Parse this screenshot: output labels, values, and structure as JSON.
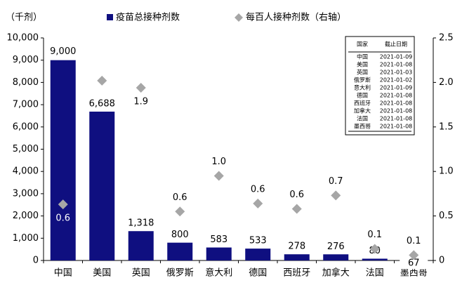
{
  "chart_data": {
    "type": "bar_scatter",
    "unit_label": "（千剂）",
    "categories": [
      "中国",
      "美国",
      "英国",
      "俄罗斯",
      "意大利",
      "德国",
      "西班牙",
      "加拿大",
      "法国",
      "墨西哥"
    ],
    "series": [
      {
        "name": "疫苗总接种剂数",
        "type": "bar",
        "color": "#0f0f80",
        "values": [
          9000,
          6688,
          1318,
          800,
          583,
          533,
          278,
          276,
          80,
          67
        ],
        "value_labels": [
          "9,000",
          "6,688",
          "1,318",
          "800",
          "583",
          "533",
          "278",
          "276",
          "80",
          "67"
        ]
      },
      {
        "name": "每百人接种剂数（右轴）",
        "type": "scatter",
        "axis": "y2",
        "color": "#a6a6a6",
        "values": [
          0.63,
          2.02,
          1.94,
          0.55,
          0.95,
          0.64,
          0.58,
          0.73,
          0.13,
          0.06
        ],
        "value_labels": [
          "0.6",
          null,
          "1.9",
          "0.6",
          "1.0",
          "0.6",
          "0.6",
          "0.7",
          "0.1",
          "0.1"
        ]
      }
    ],
    "ylim": [
      0,
      10000
    ],
    "yticks": [
      0,
      {
        "value": 1000,
        "label": "1,000"
      },
      {
        "value": 2000,
        "label": "2,000"
      },
      {
        "value": 3000,
        "label": "3,000"
      },
      {
        "value": 4000,
        "label": "4,000"
      },
      {
        "value": 5000,
        "label": "5,000"
      },
      {
        "value": 6000,
        "label": "6,000"
      },
      {
        "value": 7000,
        "label": "7,000"
      },
      {
        "value": 8000,
        "label": "8,000"
      },
      {
        "value": 9000,
        "label": "9,000"
      },
      {
        "value": 10000,
        "label": "10,000"
      }
    ],
    "y2lim": [
      0,
      2.5
    ],
    "y2ticks": [
      0,
      0.5,
      {
        "value": 1,
        "label": "1.0"
      },
      1.5,
      {
        "value": 2,
        "label": "2.0"
      },
      2.5
    ],
    "table": {
      "headers": [
        "国家",
        "截止日期"
      ],
      "rows": [
        [
          "中国",
          "2021-01-09"
        ],
        [
          "美国",
          "2021-01-08"
        ],
        [
          "英国",
          "2021-01-03"
        ],
        [
          "俄罗斯",
          "2021-01-02"
        ],
        [
          "意大利",
          "2021-01-09"
        ],
        [
          "德国",
          "2021-01-08"
        ],
        [
          "西班牙",
          "2021-01-08"
        ],
        [
          "加拿大",
          "2021-01-08"
        ],
        [
          "法国",
          "2021-01-08"
        ],
        [
          "墨西哥",
          "2021-01-08"
        ]
      ]
    }
  }
}
